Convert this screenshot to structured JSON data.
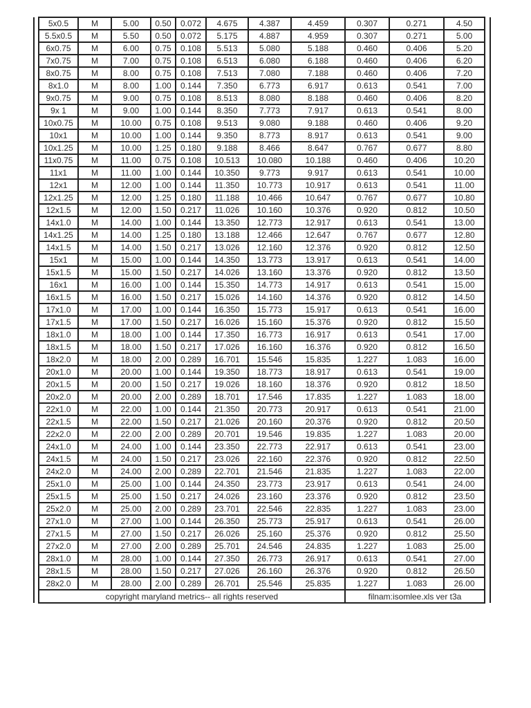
{
  "table": {
    "rows": [
      [
        "5x0.5",
        "M",
        "5.00",
        "0.50",
        "0.072",
        "4.675",
        "4.387",
        "4.459",
        "0.307",
        "0.271",
        "4.50"
      ],
      [
        "5.5x0.5",
        "M",
        "5.50",
        "0.50",
        "0.072",
        "5.175",
        "4.887",
        "4.959",
        "0.307",
        "0.271",
        "5.00"
      ],
      [
        "6x0.75",
        "M",
        "6.00",
        "0.75",
        "0.108",
        "5.513",
        "5.080",
        "5.188",
        "0.460",
        "0.406",
        "5.20"
      ],
      [
        "7x0.75",
        "M",
        "7.00",
        "0.75",
        "0.108",
        "6.513",
        "6.080",
        "6.188",
        "0.460",
        "0.406",
        "6.20"
      ],
      [
        "8x0.75",
        "M",
        "8.00",
        "0.75",
        "0.108",
        "7.513",
        "7.080",
        "7.188",
        "0.460",
        "0.406",
        "7.20"
      ],
      [
        "8x1.0",
        "M",
        "8.00",
        "1.00",
        "0.144",
        "7.350",
        "6.773",
        "6.917",
        "0.613",
        "0.541",
        "7.00"
      ],
      [
        "9x0.75",
        "M",
        "9.00",
        "0.75",
        "0.108",
        "8.513",
        "8.080",
        "8.188",
        "0.460",
        "0.406",
        "8.20"
      ],
      [
        "9x 1",
        "M",
        "9.00",
        "1.00",
        "0.144",
        "8.350",
        "7.773",
        "7.917",
        "0.613",
        "0.541",
        "8.00"
      ],
      [
        "10x0.75",
        "M",
        "10.00",
        "0.75",
        "0.108",
        "9.513",
        "9.080",
        "9.188",
        "0.460",
        "0.406",
        "9.20"
      ],
      [
        "10x1",
        "M",
        "10.00",
        "1.00",
        "0.144",
        "9.350",
        "8.773",
        "8.917",
        "0.613",
        "0.541",
        "9.00"
      ],
      [
        "10x1.25",
        "M",
        "10.00",
        "1.25",
        "0.180",
        "9.188",
        "8.466",
        "8.647",
        "0.767",
        "0.677",
        "8.80"
      ],
      [
        "11x0.75",
        "M",
        "11.00",
        "0.75",
        "0.108",
        "10.513",
        "10.080",
        "10.188",
        "0.460",
        "0.406",
        "10.20"
      ],
      [
        "11x1",
        "M",
        "11.00",
        "1.00",
        "0.144",
        "10.350",
        "9.773",
        "9.917",
        "0.613",
        "0.541",
        "10.00"
      ],
      [
        "12x1",
        "M",
        "12.00",
        "1.00",
        "0.144",
        "11.350",
        "10.773",
        "10.917",
        "0.613",
        "0.541",
        "11.00"
      ],
      [
        "12x1.25",
        "M",
        "12.00",
        "1.25",
        "0.180",
        "11.188",
        "10.466",
        "10.647",
        "0.767",
        "0.677",
        "10.80"
      ],
      [
        "12x1.5",
        "M",
        "12.00",
        "1.50",
        "0.217",
        "11.026",
        "10.160",
        "10.376",
        "0.920",
        "0.812",
        "10.50"
      ],
      [
        "14x1.0",
        "M",
        "14.00",
        "1.00",
        "0.144",
        "13.350",
        "12.773",
        "12.917",
        "0.613",
        "0.541",
        "13.00"
      ],
      [
        "14x1.25",
        "M",
        "14.00",
        "1.25",
        "0.180",
        "13.188",
        "12.466",
        "12.647",
        "0.767",
        "0.677",
        "12.80"
      ],
      [
        "14x1.5",
        "M",
        "14.00",
        "1.50",
        "0.217",
        "13.026",
        "12.160",
        "12.376",
        "0.920",
        "0.812",
        "12.50"
      ],
      [
        "15x1",
        "M",
        "15.00",
        "1.00",
        "0.144",
        "14.350",
        "13.773",
        "13.917",
        "0.613",
        "0.541",
        "14.00"
      ],
      [
        "15x1.5",
        "M",
        "15.00",
        "1.50",
        "0.217",
        "14.026",
        "13.160",
        "13.376",
        "0.920",
        "0.812",
        "13.50"
      ],
      [
        "16x1",
        "M",
        "16.00",
        "1.00",
        "0.144",
        "15.350",
        "14.773",
        "14.917",
        "0.613",
        "0.541",
        "15.00"
      ],
      [
        "16x1.5",
        "M",
        "16.00",
        "1.50",
        "0.217",
        "15.026",
        "14.160",
        "14.376",
        "0.920",
        "0.812",
        "14.50"
      ],
      [
        "17x1.0",
        "M",
        "17.00",
        "1.00",
        "0.144",
        "16.350",
        "15.773",
        "15.917",
        "0.613",
        "0.541",
        "16.00"
      ],
      [
        "17x1.5",
        "M",
        "17.00",
        "1.50",
        "0.217",
        "16.026",
        "15.160",
        "15.376",
        "0.920",
        "0.812",
        "15.50"
      ],
      [
        "18x1.0",
        "M",
        "18.00",
        "1.00",
        "0.144",
        "17.350",
        "16.773",
        "16.917",
        "0.613",
        "0.541",
        "17.00"
      ],
      [
        "18x1.5",
        "M",
        "18.00",
        "1.50",
        "0.217",
        "17.026",
        "16.160",
        "16.376",
        "0.920",
        "0.812",
        "16.50"
      ],
      [
        "18x2.0",
        "M",
        "18.00",
        "2.00",
        "0.289",
        "16.701",
        "15.546",
        "15.835",
        "1.227",
        "1.083",
        "16.00"
      ],
      [
        "20x1.0",
        "M",
        "20.00",
        "1.00",
        "0.144",
        "19.350",
        "18.773",
        "18.917",
        "0.613",
        "0.541",
        "19.00"
      ],
      [
        "20x1.5",
        "M",
        "20.00",
        "1.50",
        "0.217",
        "19.026",
        "18.160",
        "18.376",
        "0.920",
        "0.812",
        "18.50"
      ],
      [
        "20x2.0",
        "M",
        "20.00",
        "2.00",
        "0.289",
        "18.701",
        "17.546",
        "17.835",
        "1.227",
        "1.083",
        "18.00"
      ],
      [
        "22x1.0",
        "M",
        "22.00",
        "1.00",
        "0.144",
        "21.350",
        "20.773",
        "20.917",
        "0.613",
        "0.541",
        "21.00"
      ],
      [
        "22x1.5",
        "M",
        "22.00",
        "1.50",
        "0.217",
        "21.026",
        "20.160",
        "20.376",
        "0.920",
        "0.812",
        "20.50"
      ],
      [
        "22x2.0",
        "M",
        "22.00",
        "2.00",
        "0.289",
        "20.701",
        "19.546",
        "19.835",
        "1.227",
        "1.083",
        "20.00"
      ],
      [
        "24x1.0",
        "M",
        "24.00",
        "1.00",
        "0.144",
        "23.350",
        "22.773",
        "22.917",
        "0.613",
        "0.541",
        "23.00"
      ],
      [
        "24x1.5",
        "M",
        "24.00",
        "1.50",
        "0.217",
        "23.026",
        "22.160",
        "22.376",
        "0.920",
        "0.812",
        "22.50"
      ],
      [
        "24x2.0",
        "M",
        "24.00",
        "2.00",
        "0.289",
        "22.701",
        "21.546",
        "21.835",
        "1.227",
        "1.083",
        "22.00"
      ],
      [
        "25x1.0",
        "M",
        "25.00",
        "1.00",
        "0.144",
        "24.350",
        "23.773",
        "23.917",
        "0.613",
        "0.541",
        "24.00"
      ],
      [
        "25x1.5",
        "M",
        "25.00",
        "1.50",
        "0.217",
        "24.026",
        "23.160",
        "23.376",
        "0.920",
        "0.812",
        "23.50"
      ],
      [
        "25x2.0",
        "M",
        "25.00",
        "2.00",
        "0.289",
        "23.701",
        "22.546",
        "22.835",
        "1.227",
        "1.083",
        "23.00"
      ],
      [
        "27x1.0",
        "M",
        "27.00",
        "1.00",
        "0.144",
        "26.350",
        "25.773",
        "25.917",
        "0.613",
        "0.541",
        "26.00"
      ],
      [
        "27x1.5",
        "M",
        "27.00",
        "1.50",
        "0.217",
        "26.026",
        "25.160",
        "25.376",
        "0.920",
        "0.812",
        "25.50"
      ],
      [
        "27x2.0",
        "M",
        "27.00",
        "2.00",
        "0.289",
        "25.701",
        "24.546",
        "24.835",
        "1.227",
        "1.083",
        "25.00"
      ],
      [
        "28x1.0",
        "M",
        "28.00",
        "1.00",
        "0.144",
        "27.350",
        "26.773",
        "26.917",
        "0.613",
        "0.541",
        "27.00"
      ],
      [
        "28x1.5",
        "M",
        "28.00",
        "1.50",
        "0.217",
        "27.026",
        "26.160",
        "26.376",
        "0.920",
        "0.812",
        "26.50"
      ],
      [
        "28x2.0",
        "M",
        "28.00",
        "2.00",
        "0.289",
        "26.701",
        "25.546",
        "25.835",
        "1.227",
        "1.083",
        "26.00"
      ]
    ]
  },
  "footer": {
    "copyright": "copyright maryland metrics-- all rights reserved",
    "filename": "filnam:isomlee.xls ver t3a"
  }
}
